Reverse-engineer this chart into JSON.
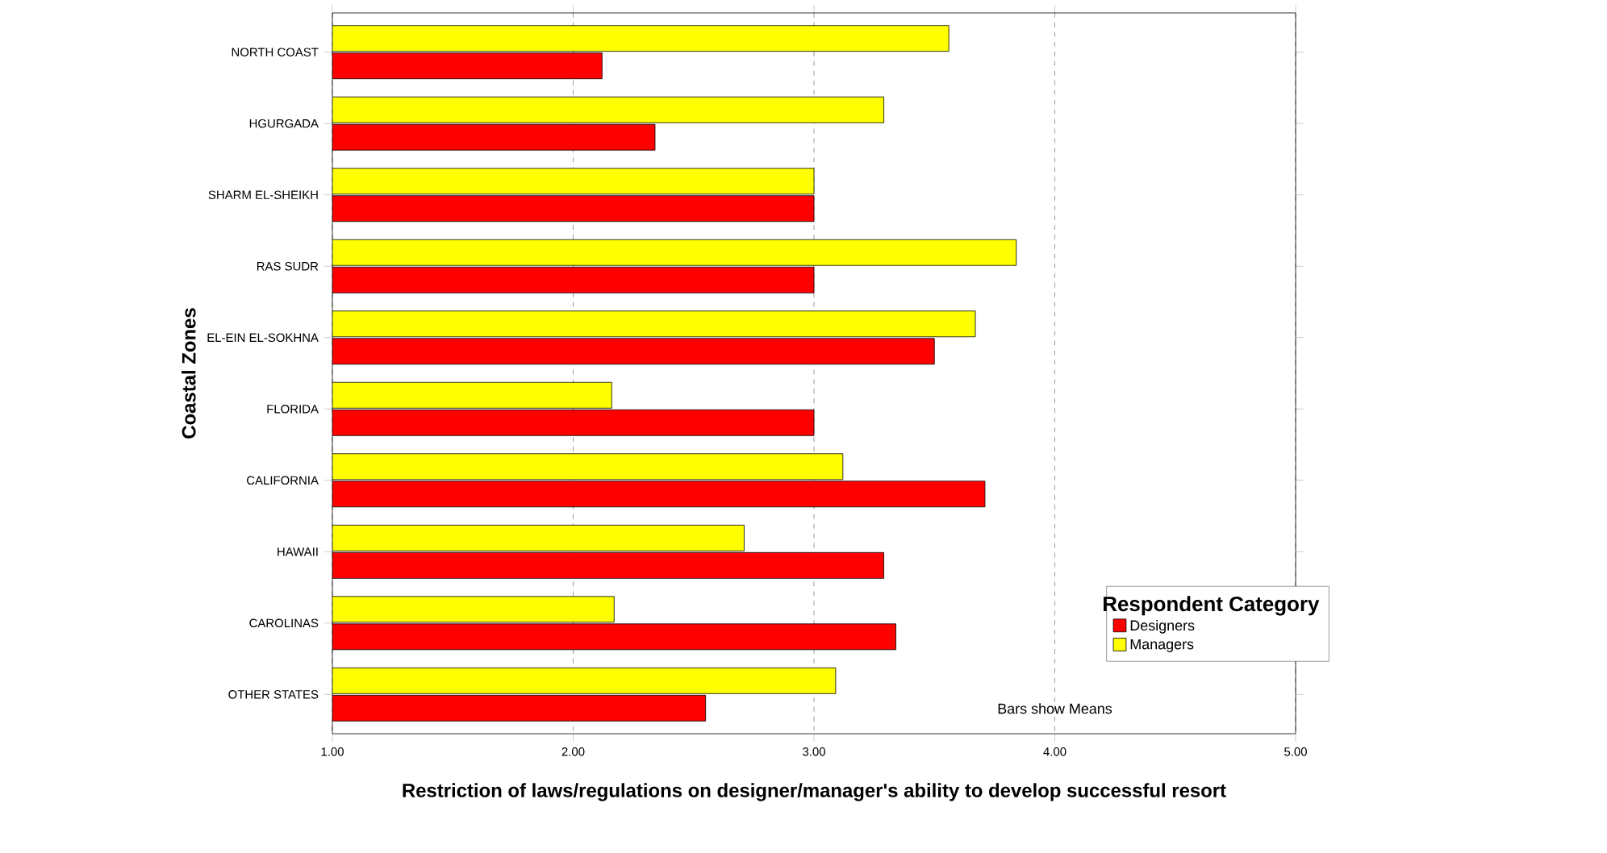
{
  "chart_data": {
    "type": "bar",
    "orientation": "horizontal",
    "xlabel": "Restriction of laws/regulations on designer/manager's ability to develop successful resort",
    "ylabel": "Coastal Zones",
    "legend_title": "Respondent Category",
    "annotations": [
      "Bars show Means"
    ],
    "categories": [
      "NORTH COAST",
      "HGURGADA",
      "SHARM EL-SHEIKH",
      "RAS SUDR",
      "EL-EIN EL-SOKHNA",
      "FLORIDA",
      "CALIFORNIA",
      "HAWAII",
      "CAROLINAS",
      "OTHER STATES"
    ],
    "series": [
      {
        "name": "Designers",
        "color": "#ff0000",
        "values": [
          2.12,
          2.34,
          3.0,
          3.0,
          3.5,
          3.0,
          3.71,
          3.29,
          3.34,
          2.55
        ]
      },
      {
        "name": "Managers",
        "color": "#ffff00",
        "values": [
          3.56,
          3.29,
          3.0,
          3.84,
          3.67,
          2.16,
          3.12,
          2.71,
          2.17,
          3.09
        ]
      }
    ],
    "xlim": [
      1,
      5
    ],
    "xticks": [
      {
        "value": 1,
        "label": "1.00"
      },
      {
        "value": 2,
        "label": "2.00"
      },
      {
        "value": 3,
        "label": "3.00"
      },
      {
        "value": 4,
        "label": "4.00"
      },
      {
        "value": 5,
        "label": "5.00"
      }
    ],
    "grid": "x",
    "legend": "bottom right"
  }
}
